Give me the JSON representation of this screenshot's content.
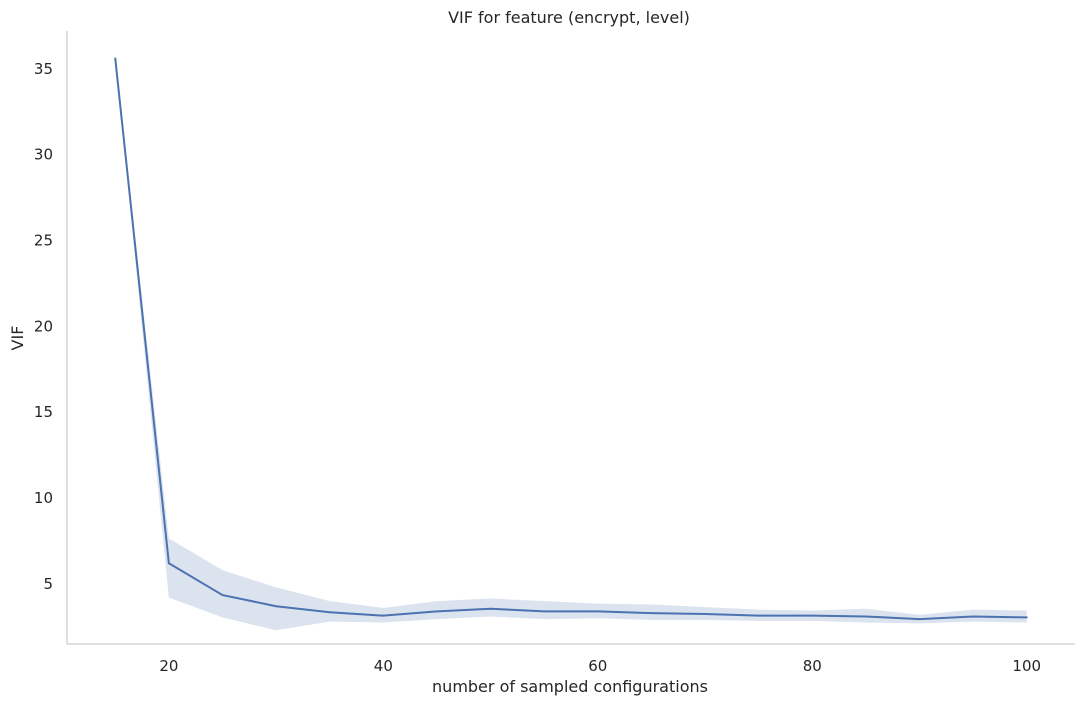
{
  "chart_data": {
    "type": "line",
    "title": "VIF for feature (encrypt, level)",
    "xlabel": "number of sampled configurations",
    "ylabel": "VIF",
    "xlim": [
      10.5,
      104.5
    ],
    "ylim": [
      1.5,
      37.2
    ],
    "xticks": [
      20,
      40,
      60,
      80,
      100
    ],
    "yticks": [
      5,
      10,
      15,
      20,
      25,
      30,
      35
    ],
    "grid": false,
    "line_color": "#4c72b0",
    "band_color": "#4c72b0",
    "axis_color": "#cccccc",
    "series": [
      {
        "x": [
          15,
          20,
          25,
          30,
          35,
          40,
          45,
          50,
          55,
          60,
          65,
          70,
          75,
          80,
          85,
          90,
          95,
          100
        ],
        "values": [
          35.6,
          6.2,
          4.35,
          3.7,
          3.35,
          3.15,
          3.4,
          3.55,
          3.4,
          3.4,
          3.3,
          3.25,
          3.15,
          3.15,
          3.1,
          2.95,
          3.1,
          3.05
        ],
        "ci_lower": [
          35.6,
          4.2,
          3.05,
          2.3,
          2.8,
          2.75,
          2.95,
          3.1,
          2.95,
          3.0,
          2.9,
          2.9,
          2.85,
          2.85,
          2.75,
          2.7,
          2.8,
          2.75
        ],
        "ci_upper": [
          35.6,
          7.65,
          5.8,
          4.8,
          4.0,
          3.6,
          4.0,
          4.15,
          4.0,
          3.85,
          3.8,
          3.65,
          3.5,
          3.45,
          3.55,
          3.2,
          3.5,
          3.45
        ]
      }
    ]
  }
}
